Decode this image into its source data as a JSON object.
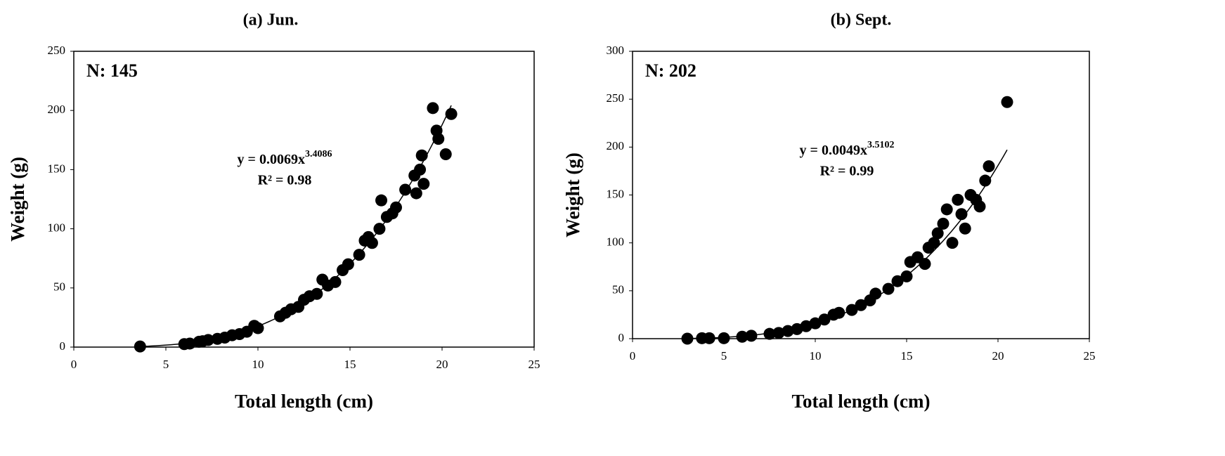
{
  "chart_data": [
    {
      "type": "scatter",
      "title": "(a) Jun.",
      "x_label": "Total length (cm)",
      "y_label": "Weight (g)",
      "annotation": "N: 145",
      "equation": "y = 0.0069x",
      "equation_exponent": "3.4086",
      "r_squared": "R² = 0.98",
      "trendline": {
        "a": 0.0069,
        "b": 3.4086,
        "xrange": [
          3.6,
          20.5
        ]
      },
      "color": "#000000",
      "x": [
        3.6,
        6,
        6.3,
        6.8,
        7,
        7.3,
        7.8,
        8.2,
        8.6,
        9,
        9.4,
        9.8,
        10,
        11.2,
        11.5,
        11.8,
        12.2,
        12.5,
        12.8,
        13.2,
        13.5,
        13.8,
        14.2,
        14.6,
        14.9,
        15.5,
        15.8,
        16,
        16.2,
        16.6,
        16.7,
        17,
        17.3,
        17.5,
        18,
        18.5,
        18.6,
        18.8,
        18.9,
        19,
        19.5,
        19.7,
        19.8,
        20.2,
        20.5
      ],
      "values": [
        0.5,
        2.5,
        3,
        4.5,
        5,
        6,
        7,
        8,
        10,
        11,
        13,
        18,
        16,
        26,
        29,
        32,
        34,
        40,
        43,
        45,
        57,
        52,
        55,
        65,
        70,
        78,
        90,
        93,
        88,
        100,
        124,
        110,
        113,
        118,
        133,
        145,
        130,
        150,
        162,
        138,
        202,
        183,
        176,
        163,
        197
      ],
      "xlim": [
        0,
        25
      ],
      "xticks": [
        0,
        5,
        10,
        15,
        20,
        25
      ],
      "ylim": [
        0,
        250
      ],
      "yticks": [
        0,
        50,
        100,
        150,
        200,
        250
      ]
    },
    {
      "type": "scatter",
      "title": "(b) Sept.",
      "x_label": "Total length (cm)",
      "y_label": "Weight (g)",
      "annotation": "N: 202",
      "equation": "y = 0.0049x",
      "equation_exponent": "3.5102",
      "r_squared": "R² = 0.99",
      "trendline": {
        "a": 0.0049,
        "b": 3.5102,
        "xrange": [
          3,
          20.5
        ]
      },
      "color": "#000000",
      "x": [
        3,
        3.8,
        4.2,
        5,
        6,
        6.5,
        7.5,
        8,
        8.5,
        9,
        9.5,
        10,
        10.5,
        11,
        11.3,
        12,
        12.5,
        13,
        13.3,
        14,
        14.5,
        15,
        15.2,
        15.6,
        16,
        16.2,
        16.5,
        16.7,
        17,
        17.2,
        17.5,
        17.8,
        18,
        18.2,
        18.5,
        18.8,
        19,
        19.3,
        19.5,
        20.5
      ],
      "values": [
        0,
        0.5,
        0.5,
        0.5,
        2,
        3,
        5,
        6,
        8,
        10,
        13,
        16,
        20,
        25,
        27,
        30,
        35,
        40,
        47,
        52,
        60,
        65,
        80,
        85,
        78,
        95,
        100,
        110,
        120,
        135,
        100,
        145,
        130,
        115,
        150,
        145,
        138,
        165,
        180,
        247
      ],
      "xlim": [
        0,
        25
      ],
      "xticks": [
        0,
        5,
        10,
        15,
        20,
        25
      ],
      "ylim": [
        0,
        300
      ],
      "yticks": [
        0,
        50,
        100,
        150,
        200,
        250,
        300
      ]
    }
  ]
}
